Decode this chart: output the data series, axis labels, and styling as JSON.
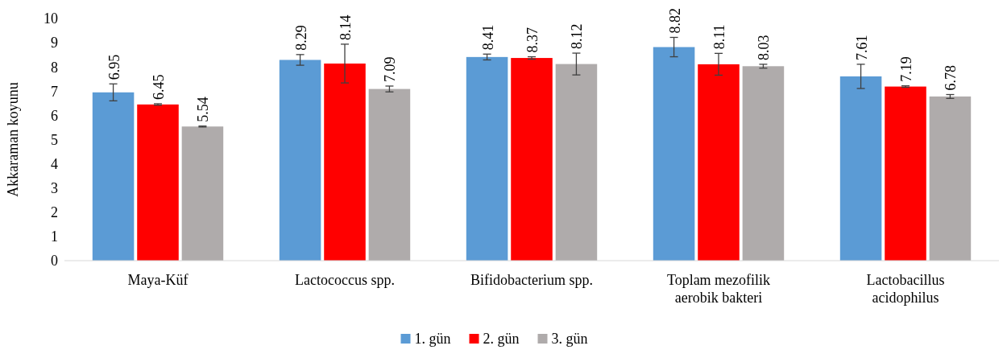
{
  "chart_data": {
    "type": "bar",
    "ylabel": "Akkaraman koyunu",
    "categories": [
      "Maya-Küf",
      "Lactococcus spp.",
      "Bifidobacterium spp.",
      "Toplam mezofilik\naerobik bakteri",
      "Lactobacillus\nacidophilus"
    ],
    "series": [
      {
        "name": "1. gün",
        "color": "#5b9bd5",
        "values": [
          6.95,
          8.29,
          8.41,
          8.82,
          7.61
        ],
        "errors": [
          0.35,
          0.22,
          0.12,
          0.4,
          0.5
        ]
      },
      {
        "name": "2. gün",
        "color": "#ff0000",
        "values": [
          6.45,
          8.14,
          8.37,
          8.11,
          7.19
        ],
        "errors": [
          0.03,
          0.8,
          0.05,
          0.45,
          0.03
        ]
      },
      {
        "name": "3. gün",
        "color": "#afabab",
        "values": [
          5.54,
          7.09,
          8.12,
          8.03,
          6.78
        ],
        "errors": [
          0.02,
          0.12,
          0.45,
          0.08,
          0.08
        ]
      }
    ],
    "ylim": [
      0,
      10
    ],
    "yticks": [
      0,
      1,
      2,
      3,
      4,
      5,
      6,
      7,
      8,
      9,
      10
    ],
    "data_labels": true,
    "legend": "bottom",
    "grid": false
  }
}
